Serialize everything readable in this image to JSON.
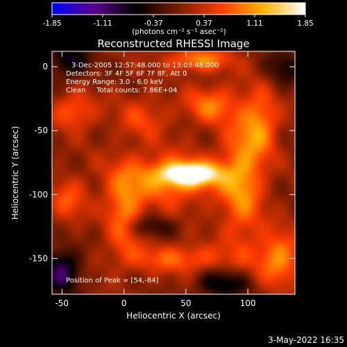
{
  "chart_data": {
    "type": "heatmap",
    "title": "Reconstructed RHESSI Image",
    "xlabel": "Heliocentric X (arcsec)",
    "ylabel": "Heliocentric Y (arcsec)",
    "xlim": [
      -58,
      138
    ],
    "ylim": [
      -178,
      12
    ],
    "xticks": [
      -50,
      0,
      50,
      100
    ],
    "yticks": [
      0,
      -50,
      -100,
      -150
    ],
    "colorbar": {
      "min": -1.85,
      "max": 1.85,
      "ticks": [
        "-1.85",
        "-1.11",
        "-0.37",
        "0.37",
        "1.11",
        "1.85"
      ],
      "unit_label": "(photons cm⁻² s⁻¹ asec⁻²)",
      "colors": [
        "#0000ff",
        "#5a008a",
        "#000000",
        "#7a1e00",
        "#ff3c00",
        "#ffb300",
        "#ffffff"
      ]
    },
    "annotations": [
      "3-Dec-2005 12:57:48.000 to 13:03:48.000",
      "Detectors: 3F 4F 5F 6F 7F 8F, Att 0",
      "Energy Range: 3.0 - 6.0 keV",
      "Clean     Total counts: 7.86E+04"
    ],
    "peak_label": "Position of Peak = [54,-84]",
    "peak": [
      54,
      -84
    ],
    "sources": [
      {
        "x": 54,
        "y": -84,
        "sx": 16,
        "sy": 6,
        "amp": 1.85
      },
      {
        "x": 35,
        "y": -88,
        "sx": 30,
        "sy": 14,
        "amp": 0.9
      },
      {
        "x": 95,
        "y": -90,
        "sx": 12,
        "sy": 35,
        "amp": 0.95
      },
      {
        "x": 110,
        "y": -45,
        "sx": 10,
        "sy": 18,
        "amp": 0.85
      },
      {
        "x": 125,
        "y": -150,
        "sx": 12,
        "sy": 15,
        "amp": 0.95
      },
      {
        "x": 45,
        "y": -150,
        "sx": 30,
        "sy": 8,
        "amp": 0.7
      },
      {
        "x": 0,
        "y": -115,
        "sx": 10,
        "sy": 22,
        "amp": 0.85
      },
      {
        "x": -40,
        "y": -35,
        "sx": 12,
        "sy": 10,
        "amp": 0.7
      },
      {
        "x": 60,
        "y": 5,
        "sx": 18,
        "sy": 6,
        "amp": 0.95
      },
      {
        "x": 70,
        "y": -30,
        "sx": 14,
        "sy": 10,
        "amp": 0.8
      },
      {
        "x": -45,
        "y": -105,
        "sx": 10,
        "sy": 12,
        "amp": 0.6
      },
      {
        "x": 15,
        "y": -40,
        "sx": 15,
        "sy": 12,
        "amp": 0.5
      },
      {
        "x": -50,
        "y": -160,
        "sx": 10,
        "sy": 12,
        "amp": -1.1
      },
      {
        "x": -45,
        "y": 5,
        "sx": 12,
        "sy": 10,
        "amp": -0.8
      },
      {
        "x": 130,
        "y": 0,
        "sx": 10,
        "sy": 10,
        "amp": -0.6
      },
      {
        "x": 80,
        "y": -170,
        "sx": 15,
        "sy": 8,
        "amp": -0.8
      },
      {
        "x": 20,
        "y": -125,
        "sx": 15,
        "sy": 6,
        "amp": -0.5
      }
    ]
  },
  "footer": {
    "date": "3-May-2022 16:35"
  }
}
